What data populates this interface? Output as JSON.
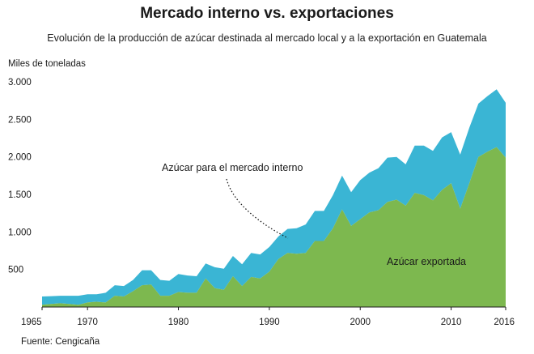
{
  "title": "Mercado interno vs. exportaciones",
  "subtitle": "Evolución de la producción de azúcar destinada al mercado local y a la exportación en Guatemala",
  "source": "Fuente: Cengicaña",
  "colors": {
    "domestic": "#3ab5d4",
    "export": "#7db84f"
  },
  "chart_data": {
    "type": "area",
    "stacked": true,
    "ylabel": "Miles de toneladas",
    "xlim": [
      1965,
      2016
    ],
    "ylim": [
      0,
      3000
    ],
    "x_ticks": [
      1965,
      1970,
      1980,
      1990,
      2000,
      2010,
      2016
    ],
    "x_tick_labels": [
      "1965",
      "1970",
      "1980",
      "1990",
      "2000",
      "2010",
      "2016"
    ],
    "y_ticks": [
      500,
      1000,
      1500,
      2000,
      2500,
      3000
    ],
    "y_tick_labels": [
      "500",
      "1.000",
      "1.500",
      "2.000",
      "2.500",
      "3.000"
    ],
    "x": [
      1965,
      1966,
      1967,
      1968,
      1969,
      1970,
      1971,
      1972,
      1973,
      1974,
      1975,
      1976,
      1977,
      1978,
      1979,
      1980,
      1981,
      1982,
      1983,
      1984,
      1985,
      1986,
      1987,
      1988,
      1989,
      1990,
      1991,
      1992,
      1993,
      1994,
      1995,
      1996,
      1997,
      1998,
      1999,
      2000,
      2001,
      2002,
      2003,
      2004,
      2005,
      2006,
      2007,
      2008,
      2009,
      2010,
      2011,
      2012,
      2013,
      2014,
      2015,
      2016
    ],
    "series": [
      {
        "name": "Azúcar exportada",
        "values": [
          30,
          40,
          50,
          40,
          30,
          60,
          70,
          60,
          150,
          140,
          210,
          290,
          300,
          150,
          150,
          200,
          190,
          190,
          380,
          250,
          230,
          410,
          280,
          400,
          380,
          470,
          640,
          720,
          710,
          720,
          880,
          880,
          1050,
          1300,
          1080,
          1170,
          1260,
          1290,
          1400,
          1430,
          1350,
          1520,
          1490,
          1420,
          1560,
          1650,
          1310,
          1650,
          2000,
          2070,
          2130,
          1990
        ]
      },
      {
        "name": "Azúcar para el mercado interno",
        "values": [
          110,
          105,
          100,
          110,
          120,
          110,
          100,
          130,
          140,
          140,
          150,
          200,
          190,
          210,
          200,
          240,
          230,
          220,
          200,
          280,
          280,
          270,
          290,
          320,
          320,
          330,
          300,
          320,
          340,
          380,
          400,
          400,
          440,
          450,
          450,
          520,
          530,
          560,
          590,
          570,
          550,
          630,
          660,
          660,
          700,
          680,
          720,
          740,
          710,
          740,
          770,
          730
        ]
      }
    ],
    "annotations": [
      {
        "text": "Azúcar para el mercado interno"
      },
      {
        "text": "Azúcar exportada"
      }
    ]
  }
}
